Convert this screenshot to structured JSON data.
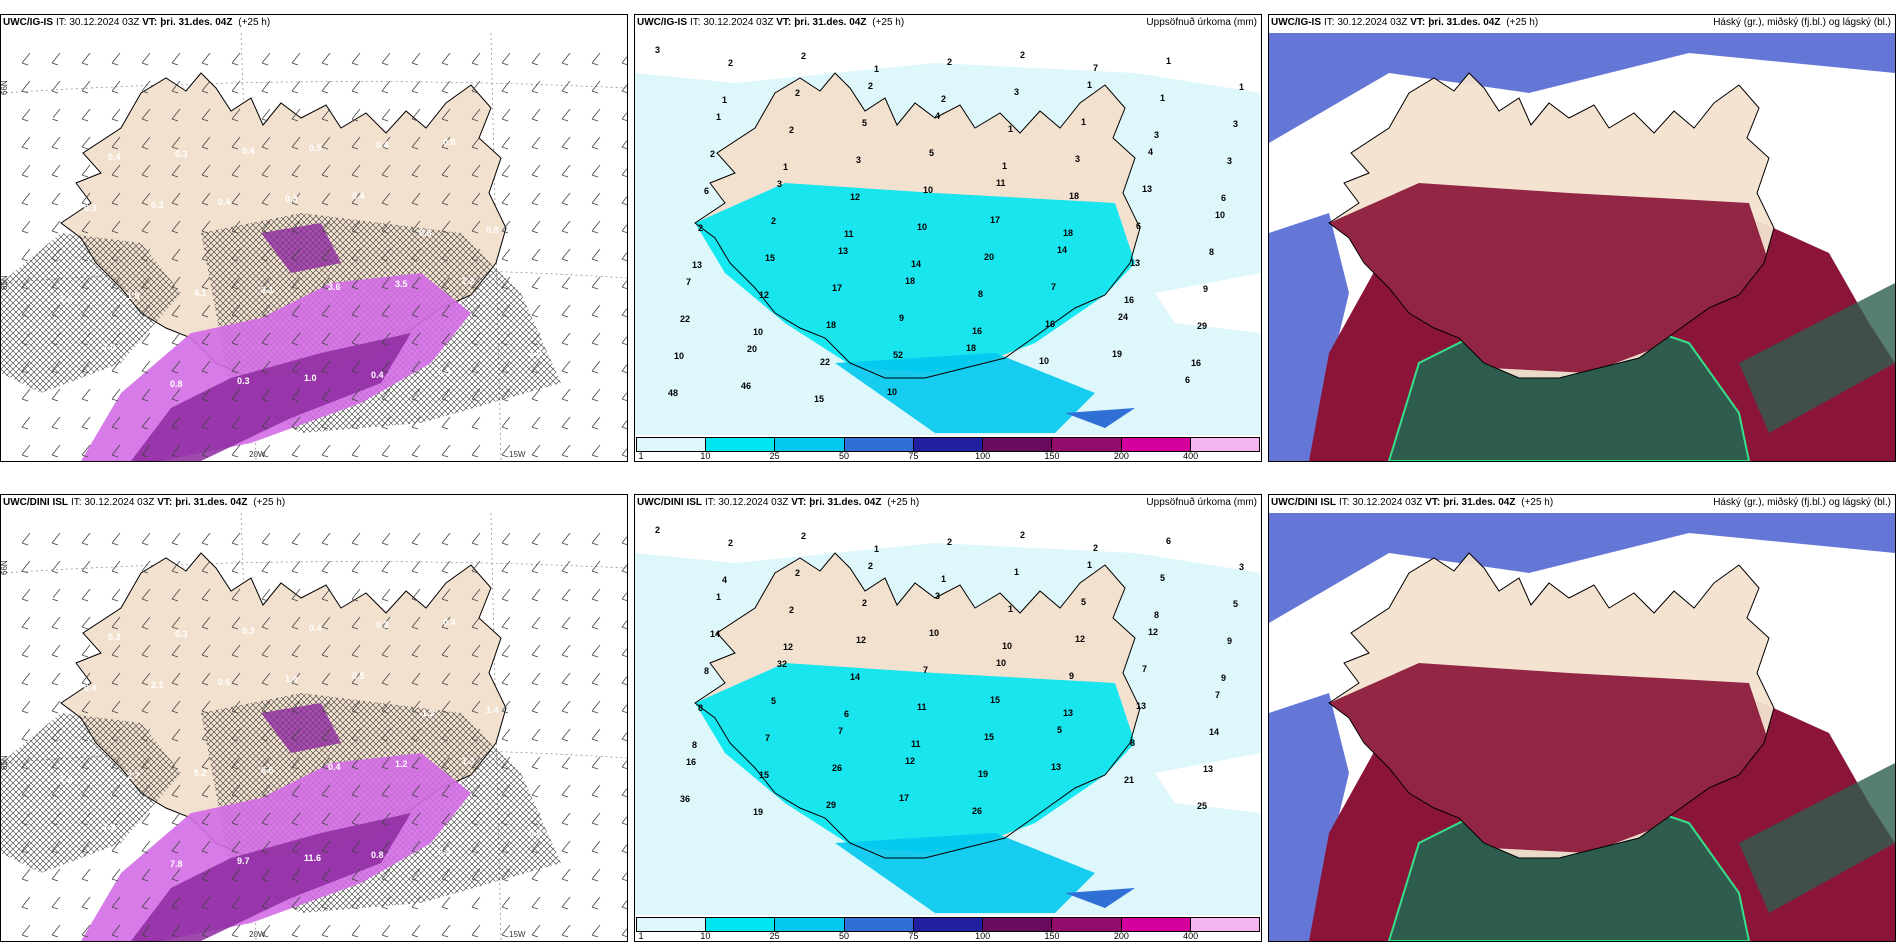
{
  "palette": {
    "land": "#f3e1cf",
    "precip": [
      "#ddf7fb",
      "#00e5ef",
      "#00c8ee",
      "#2f6fd6",
      "#2020a0",
      "#6b0b5e",
      "#940d6c",
      "#d4009b",
      "#f4b5f0"
    ],
    "pink": "#d36de6",
    "pinkDark": "#8e2aa0",
    "cloudHigh": "#8a1538",
    "cloudMid": "#2e5c4f",
    "cloudLow": "#4a5fcf",
    "coast": "#000000"
  },
  "legend": {
    "ticks": [
      "1",
      "10",
      "25",
      "50",
      "75",
      "100",
      "150",
      "200",
      "400"
    ]
  },
  "panels": [
    {
      "model": "UWC/IG-IS",
      "it_label": "IT:",
      "it": "30.12.2024 03Z",
      "vt_label": "VT:",
      "vt": "þri. 31.des. 04Z",
      "lead": "(+25 h)",
      "right": "",
      "type": "wind",
      "labels": [
        "0.3",
        "0.4",
        "0.3",
        "0.4",
        "0.5",
        "0.4",
        "0.8",
        "0.7",
        "0.4",
        "0.3",
        "0.3",
        "0.4",
        "0.3",
        "0.4",
        "0.6",
        "0.8",
        "1.1",
        "2.8",
        "1.5",
        "4.1",
        "3.1",
        "3.6",
        "3.5",
        "2.2",
        "1.0",
        "3.2",
        "7.0",
        "0.8",
        "0.3",
        "1.0",
        "0.4",
        "6.3",
        "0.4"
      ]
    },
    {
      "model": "UWC/IG-IS",
      "it_label": "IT:",
      "it": "30.12.2024 03Z",
      "vt_label": "VT:",
      "vt": "þri. 31.des. 04Z",
      "lead": "(+25 h)",
      "right": "Uppsöfnuð úrkoma (mm)",
      "type": "precip",
      "labels": [
        "3",
        "2",
        "2",
        "1",
        "2",
        "2",
        "7",
        "1",
        "1",
        "1",
        "2",
        "2",
        "2",
        "3",
        "1",
        "1",
        "3",
        "1",
        "2",
        "5",
        "4",
        "1",
        "1",
        "3",
        "3",
        "2",
        "1",
        "3",
        "5",
        "1",
        "3",
        "4",
        "6",
        "6",
        "3",
        "12",
        "10",
        "11",
        "18",
        "13",
        "10",
        "2",
        "2",
        "11",
        "10",
        "17",
        "18",
        "6",
        "8",
        "13",
        "15",
        "13",
        "14",
        "20",
        "14",
        "13",
        "9",
        "7",
        "12",
        "17",
        "18",
        "8",
        "7",
        "16",
        "29",
        "22",
        "10",
        "18",
        "9",
        "16",
        "16",
        "24",
        "16",
        "10",
        "20",
        "22",
        "52",
        "18",
        "10",
        "19",
        "6",
        "48",
        "46",
        "15",
        "10"
      ]
    },
    {
      "model": "UWC/IG-IS",
      "it_label": "IT:",
      "it": "30.12.2024 03Z",
      "vt_label": "VT:",
      "vt": "þri. 31.des. 04Z",
      "lead": "(+25 h)",
      "right": "Háský (gr.), miðský (fj.bl.) og lágský (bl.)",
      "type": "cloud",
      "labels": []
    },
    {
      "model": "UWC/DINI ISL",
      "it_label": "IT:",
      "it": "30.12.2024 03Z",
      "vt_label": "VT:",
      "vt": "þri. 31.des. 04Z",
      "lead": "(+25 h)",
      "right": "",
      "type": "wind",
      "labels": [
        "0.3",
        "0.3",
        "0.3",
        "0.3",
        "0.4",
        "0.3",
        "0.4",
        "0.4",
        "0.3",
        "0.4",
        "2.1",
        "0.6",
        "1.4",
        "0.5",
        "-1.3",
        "1.4",
        "3.1",
        "2.2",
        "2.7",
        "5.2",
        "6.6",
        "0.4",
        "1.2",
        "1.3",
        "0.4",
        "0.3",
        "7.2",
        "7.8",
        "9.7",
        "11.6",
        "0.8",
        "0.4",
        "0.5",
        "5.7"
      ]
    },
    {
      "model": "UWC/DINI ISL",
      "it_label": "IT:",
      "it": "30.12.2024 03Z",
      "vt_label": "VT:",
      "vt": "þri. 31.des. 04Z",
      "lead": "(+25 h)",
      "right": "Uppsöfnuð úrkoma (mm)",
      "type": "precip",
      "labels": [
        "2",
        "2",
        "2",
        "1",
        "2",
        "2",
        "2",
        "6",
        "3",
        "4",
        "2",
        "2",
        "1",
        "1",
        "1",
        "5",
        "5",
        "1",
        "2",
        "2",
        "3",
        "1",
        "5",
        "8",
        "9",
        "14",
        "12",
        "12",
        "10",
        "10",
        "12",
        "12",
        "9",
        "8",
        "32",
        "14",
        "7",
        "10",
        "9",
        "7",
        "7",
        "8",
        "5",
        "6",
        "11",
        "15",
        "13",
        "13",
        "14",
        "8",
        "7",
        "7",
        "11",
        "15",
        "5",
        "8",
        "13",
        "16",
        "15",
        "26",
        "12",
        "19",
        "13",
        "21",
        "25",
        "36",
        "19",
        "29",
        "17",
        "26"
      ]
    },
    {
      "model": "UWC/DINI ISL",
      "it_label": "IT:",
      "it": "30.12.2024 03Z",
      "vt_label": "VT:",
      "vt": "þri. 31.des. 04Z",
      "lead": "(+25 h)",
      "right": "Háský (gr.), miðský (fj.bl.) og lágský (bl.)",
      "type": "cloud",
      "labels": []
    }
  ],
  "axis_labels": {
    "lat66": "66N",
    "lat65": "65N",
    "lon20": "20W",
    "lon15": "15W"
  }
}
